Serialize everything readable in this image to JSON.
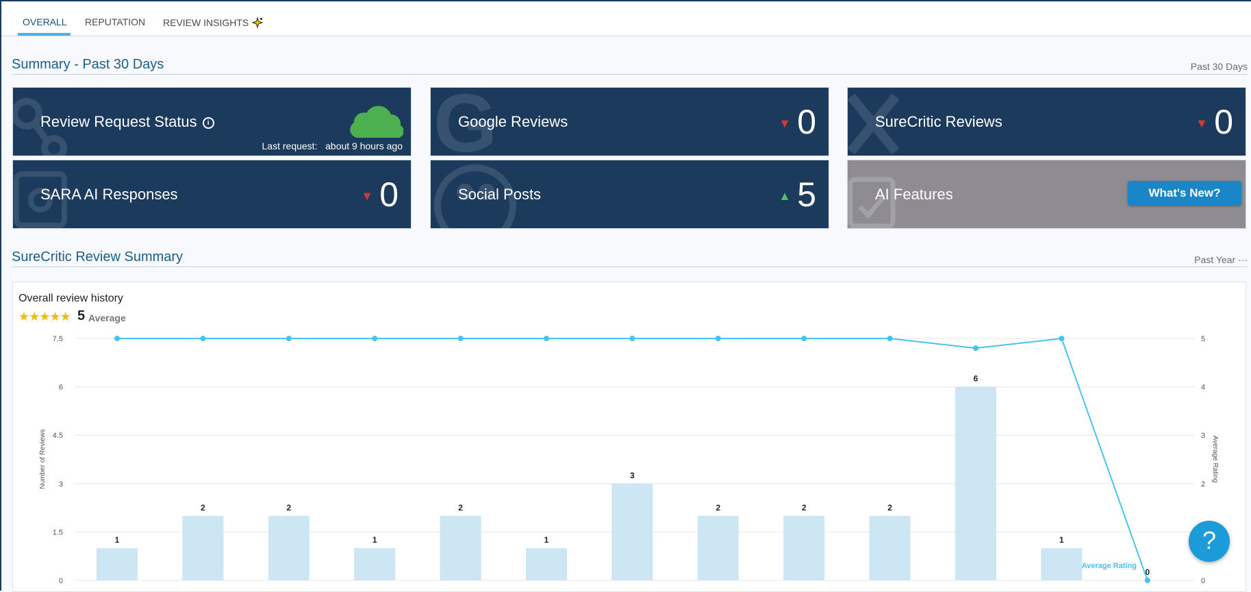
{
  "tabs": [
    {
      "label": "OVERALL",
      "active": true
    },
    {
      "label": "REPUTATION",
      "active": false
    },
    {
      "label": "REVIEW INSIGHTS",
      "active": false
    }
  ],
  "summary": {
    "title": "Summary - Past 30 Days",
    "period": "Past 30 Days",
    "cards": [
      {
        "label": "Review Request Status",
        "last_request_label": "Last request:",
        "last_request_value": "about 9 hours ago",
        "icon": "cloud-icon"
      },
      {
        "label": "Google Reviews",
        "count": "0",
        "trend": "down"
      },
      {
        "label": "SureCritic Reviews",
        "count": "0",
        "trend": "down"
      },
      {
        "label": "SARA AI Responses",
        "count": "0",
        "trend": "down"
      },
      {
        "label": "Social Posts",
        "count": "5",
        "trend": "up"
      },
      {
        "label": "AI Features",
        "button": "What's New?"
      }
    ]
  },
  "surecritic": {
    "title": "SureCritic Review Summary",
    "period": "Past Year",
    "more": "···"
  },
  "chart_data": {
    "type": "bar",
    "title": "Overall review history",
    "average_value": "5",
    "average_label": "Average",
    "ylabel": "Number of Reviews",
    "ylabel_right": "Average Rating",
    "ylim": [
      0,
      7.5
    ],
    "ylim_right": [
      0,
      5
    ],
    "yticks": [
      "0",
      "1.5",
      "3",
      "4.5",
      "6",
      "7.5"
    ],
    "yticks_right": [
      "0",
      "1",
      "2",
      "3",
      "4",
      "5"
    ],
    "series": [
      {
        "name": "Number of Reviews",
        "type": "bar",
        "values": [
          1,
          2,
          2,
          1,
          2,
          1,
          3,
          2,
          2,
          2,
          6,
          1,
          0
        ]
      },
      {
        "name": "Average Rating",
        "type": "line",
        "values": [
          5,
          5,
          5,
          5,
          5,
          5,
          5,
          5,
          5,
          5,
          4.8,
          5,
          0
        ]
      }
    ],
    "value_labels": [
      "1",
      "2",
      "2",
      "1",
      "2",
      "1",
      "3",
      "2",
      "2",
      "2",
      "6",
      "1",
      "0"
    ],
    "colors": {
      "bar": "#cde6f3",
      "line": "#47c3f0",
      "grid": "#e6e6e6"
    }
  },
  "help_button": "?"
}
